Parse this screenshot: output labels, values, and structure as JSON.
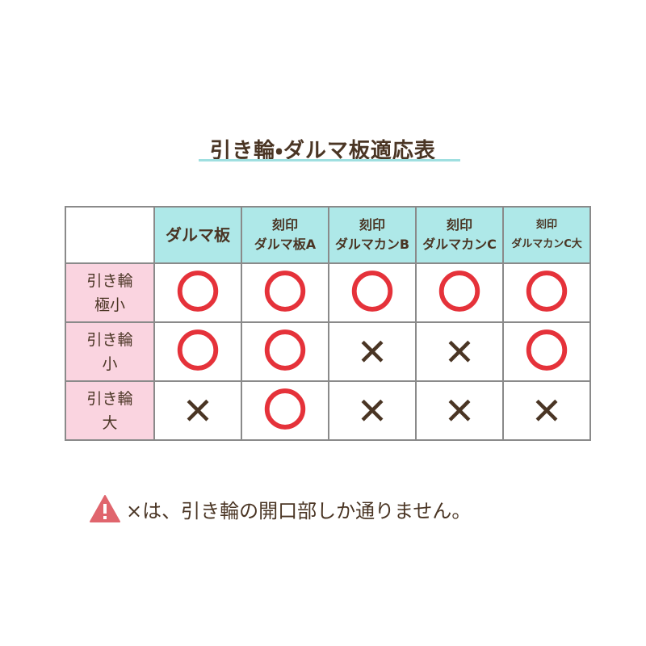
{
  "title": "引き輪・ダルマ板適応表",
  "table": {
    "columns": [
      [
        "ダルマ板"
      ],
      [
        "刻印",
        "ダルマ板A"
      ],
      [
        "刻印",
        "ダルマカンB"
      ],
      [
        "刻印",
        "ダルマカンC"
      ],
      [
        "刻印",
        "ダルマカンC大"
      ]
    ],
    "rows": [
      {
        "label": [
          "引き輪",
          "極小"
        ],
        "cells": [
          "〇",
          "〇",
          "〇",
          "〇",
          "〇"
        ]
      },
      {
        "label": [
          "引き輪",
          "小"
        ],
        "cells": [
          "〇",
          "〇",
          "✕",
          "✕",
          "〇"
        ]
      },
      {
        "label": [
          "引き輪",
          "大"
        ],
        "cells": [
          "✕",
          "〇",
          "✕",
          "✕",
          "✕"
        ]
      }
    ]
  },
  "note": "×は、引き輪の開口部しか通りません。"
}
